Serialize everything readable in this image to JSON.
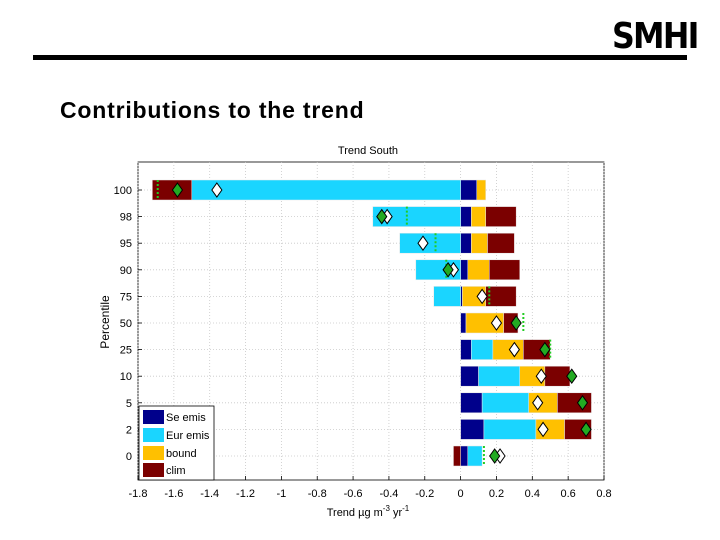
{
  "slide": {
    "logo_text": "SMHI",
    "title": "Contributions to the trend"
  },
  "chart_data": {
    "type": "bar",
    "orientation": "horizontal",
    "stacked": true,
    "title": "Trend  South",
    "xlabel": "Trend µg m",
    "xlabel_sup1": "-3",
    "xlabel_mid": " yr",
    "xlabel_sup2": "-1",
    "ylabel": "Percentile",
    "xlim": [
      -1.8,
      0.8
    ],
    "xticks": [
      -1.8,
      -1.6,
      -1.4,
      -1.2,
      -1,
      -0.8,
      -0.6,
      -0.4,
      -0.2,
      0,
      0.2,
      0.4,
      0.6,
      0.8
    ],
    "xtick_labels": [
      "-1.8",
      "-1.6",
      "-1.4",
      "-1.2",
      "-1",
      "-0.8",
      "-0.6",
      "-0.4",
      "-0.2",
      "0",
      "0.2",
      "0.4",
      "0.6",
      "0.8"
    ],
    "grid": true,
    "legend_position": "bottom-left",
    "colors": {
      "Se emis": "#00008b",
      "Eur emis": "#1ad5ff",
      "bound": "#ffc000",
      "clim": "#7b0000",
      "total_marker": "#22aa22",
      "alt_marker": "#ffffff",
      "dotted_line": "#22cc22"
    },
    "categories": [
      "100",
      "98",
      "95",
      "90",
      "75",
      "50",
      "25",
      "10",
      "5",
      "2",
      "0"
    ],
    "series": [
      {
        "name": "Se emis",
        "values": [
          0.09,
          0.06,
          0.06,
          0.04,
          0.01,
          0.03,
          0.06,
          0.1,
          0.12,
          0.13,
          0.04
        ]
      },
      {
        "name": "Eur emis",
        "values": [
          -1.5,
          -0.49,
          -0.34,
          -0.25,
          -0.15,
          0.0,
          0.12,
          0.23,
          0.26,
          0.29,
          0.08
        ]
      },
      {
        "name": "bound",
        "values": [
          0.05,
          0.08,
          0.09,
          0.12,
          0.13,
          0.21,
          0.17,
          0.14,
          0.16,
          0.16,
          0.0
        ]
      },
      {
        "name": "clim",
        "values": [
          -0.22,
          0.17,
          0.15,
          0.17,
          0.17,
          0.08,
          0.15,
          0.14,
          0.19,
          0.15,
          -0.04
        ]
      }
    ],
    "markers": {
      "total_green_diamond": [
        -1.58,
        -0.44,
        null,
        -0.07,
        null,
        0.31,
        0.47,
        0.62,
        0.68,
        0.7,
        0.19
      ],
      "alt_white_diamond": [
        -1.36,
        -0.41,
        -0.21,
        -0.04,
        0.12,
        0.2,
        0.3,
        0.45,
        0.43,
        0.46,
        0.22
      ],
      "dotted_line": [
        -1.69,
        -0.3,
        -0.14,
        -0.08,
        0.16,
        0.35,
        0.5,
        null,
        null,
        null,
        0.13
      ]
    }
  }
}
